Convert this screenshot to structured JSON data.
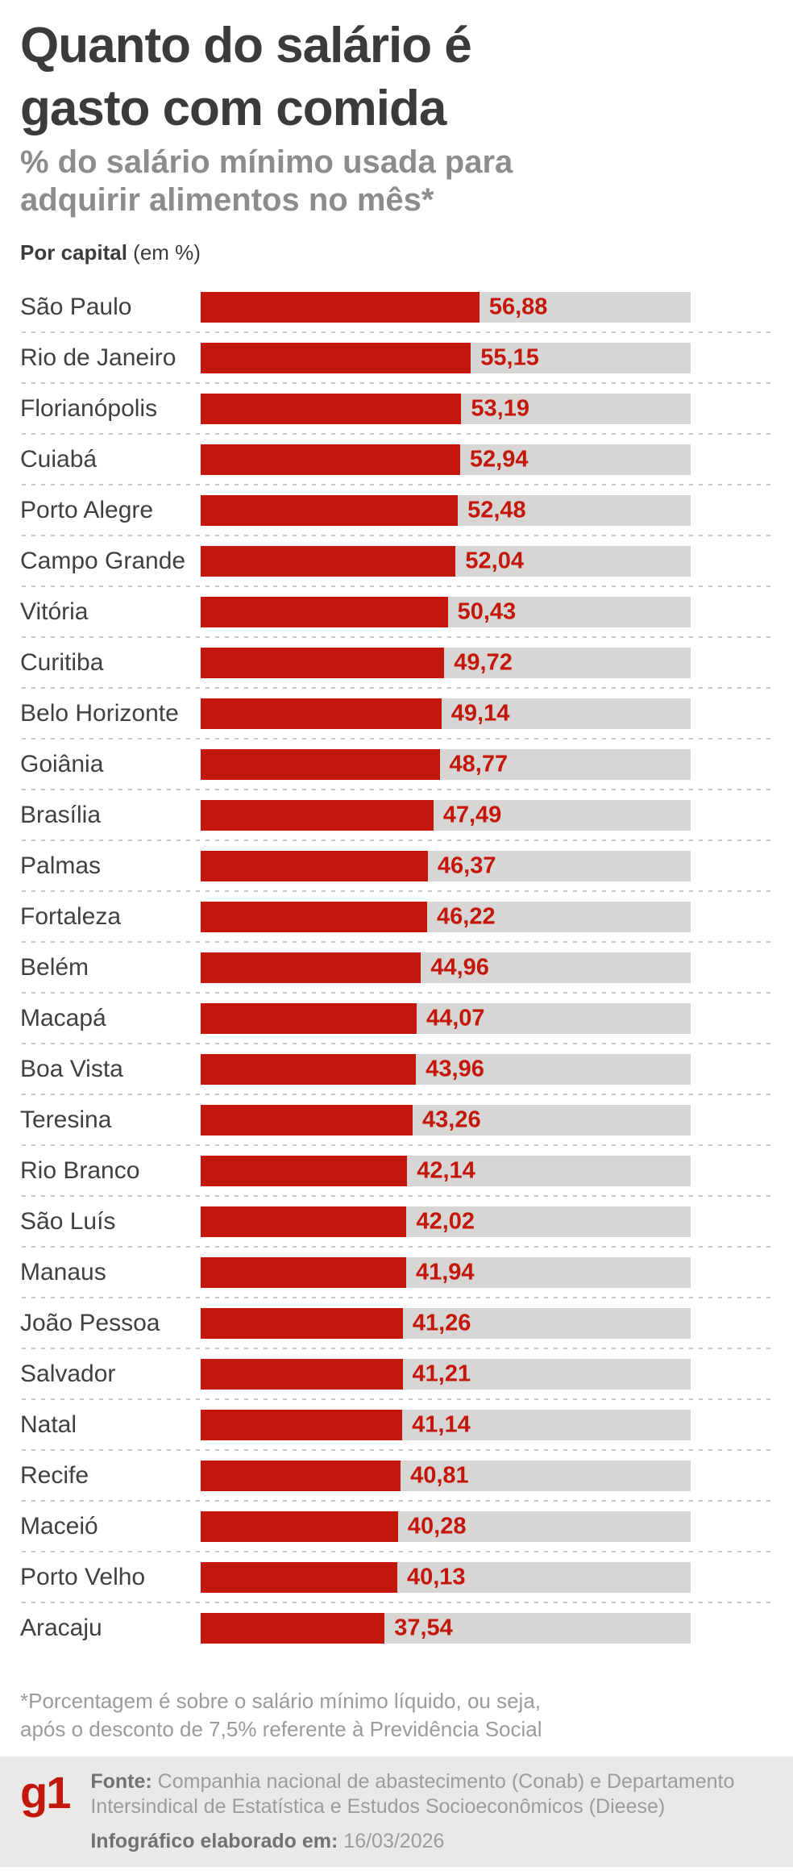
{
  "header": {
    "title_line1": "Quanto do salário é",
    "title_line2": "gasto com comida",
    "subtitle_line1": "% do salário mínimo usada para",
    "subtitle_line2": "adquirir alimentos no mês*",
    "unit_label_bold": "Por capital",
    "unit_label_rest": " (em %)"
  },
  "chart_data": {
    "type": "bar",
    "orientation": "horizontal",
    "title": "Quanto do salário é gasto com comida",
    "subtitle": "% do salário mínimo usada para adquirir alimentos no mês*",
    "unit": "Por capital (em %)",
    "xlim": [
      0,
      100
    ],
    "grid": false,
    "legend": false,
    "bar_color": "#c4170c",
    "track_color": "#d8d6d4",
    "value_label_color": "#c4170c",
    "categories": [
      "São Paulo",
      "Rio de Janeiro",
      "Florianópolis",
      "Cuiabá",
      "Porto Alegre",
      "Campo Grande",
      "Vitória",
      "Curitiba",
      "Belo Horizonte",
      "Goiânia",
      "Brasília",
      "Palmas",
      "Fortaleza",
      "Belém",
      "Macapá",
      "Boa Vista",
      "Teresina",
      "Rio Branco",
      "São Luís",
      "Manaus",
      "João Pessoa",
      "Salvador",
      "Natal",
      "Recife",
      "Maceió",
      "Porto Velho",
      "Aracaju"
    ],
    "values": [
      56.88,
      55.15,
      53.19,
      52.94,
      52.48,
      52.04,
      50.43,
      49.72,
      49.14,
      48.77,
      47.49,
      46.37,
      46.22,
      44.96,
      44.07,
      43.96,
      43.26,
      42.14,
      42.02,
      41.94,
      41.26,
      41.21,
      41.14,
      40.81,
      40.28,
      40.13,
      37.54
    ],
    "value_labels": [
      "56,88",
      "55,15",
      "53,19",
      "52,94",
      "52,48",
      "52,04",
      "50,43",
      "49,72",
      "49,14",
      "48,77",
      "47,49",
      "46,37",
      "46,22",
      "44,96",
      "44,07",
      "43,96",
      "43,26",
      "42,14",
      "42,02",
      "41,94",
      "41,26",
      "41,21",
      "41,14",
      "40,81",
      "40,28",
      "40,13",
      "37,54"
    ]
  },
  "footnote": {
    "line1": "*Porcentagem é sobre o salário mínimo líquido, ou seja,",
    "line2": "após o desconto de 7,5% referente à Previdência Social"
  },
  "footer": {
    "logo": "g1",
    "source_label": "Fonte:",
    "source_text": " Companhia nacional de abastecimento (Conab) e Departamento Intersindical de Estatística e Estudos Socioeconômicos (Dieese)",
    "elaborated_label": "Infográfico elaborado em:",
    "elaborated_date": " 16/03/2026"
  },
  "colors": {
    "accent_red": "#c4170c",
    "track_gray": "#d8d6d4",
    "footer_band": "#eae9e7",
    "title_text": "#3b3b3b",
    "subtitle_text": "#8d8c8b",
    "muted_text": "#9c9b9a"
  }
}
